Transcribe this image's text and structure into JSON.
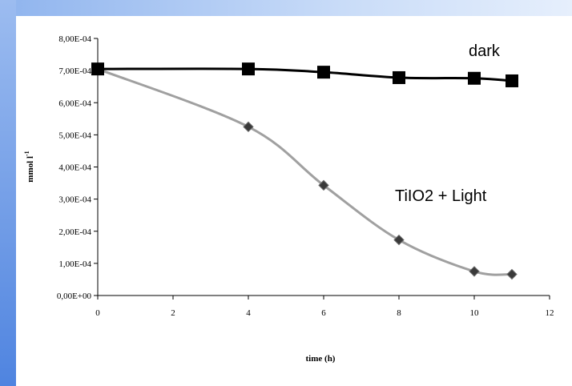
{
  "chart_data": {
    "type": "line",
    "title": "",
    "xlabel": "time (h)",
    "ylabel_main": "mmol l",
    "ylabel_sup": "-1",
    "xlim": [
      0,
      12
    ],
    "ylim": [
      0,
      0.0008
    ],
    "x_ticks": [
      "0",
      "2",
      "4",
      "6",
      "8",
      "10",
      "12"
    ],
    "y_ticks": [
      "0,00E+00",
      "1,00E-04",
      "2,00E-04",
      "3,00E-04",
      "4,00E-04",
      "5,00E-04",
      "6,00E-04",
      "7,00E-04",
      "8,00E-04"
    ],
    "grid": false,
    "series": [
      {
        "name": "dark",
        "color": "#000000",
        "marker": "square",
        "x": [
          0,
          4,
          6,
          8,
          10,
          11
        ],
        "y": [
          0.000705,
          0.000705,
          0.000695,
          0.000678,
          0.000676,
          0.000668
        ]
      },
      {
        "name": "TiIO2 + Light",
        "color": "#a0a0a0",
        "marker": "diamond",
        "x": [
          0,
          4,
          6,
          8,
          10,
          11
        ],
        "y": [
          0.000705,
          0.000525,
          0.000343,
          0.000173,
          7.5e-05,
          6.6e-05
        ]
      }
    ]
  }
}
